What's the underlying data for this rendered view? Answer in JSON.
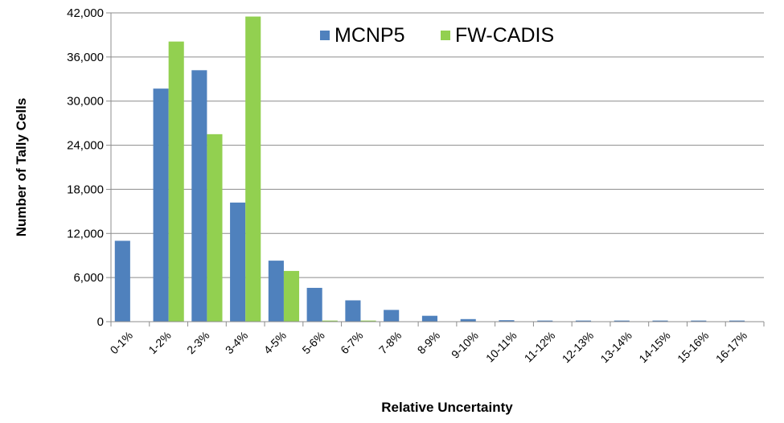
{
  "chart_data": {
    "type": "bar",
    "title": "",
    "xlabel": "Relative Uncertainty",
    "ylabel": "Number of Tally Cells",
    "ylim": [
      0,
      42000
    ],
    "yticks": [
      "0",
      "6,000",
      "12,000",
      "18,000",
      "24,000",
      "30,000",
      "36,000",
      "42,000"
    ],
    "ytick_values": [
      0,
      6000,
      12000,
      18000,
      24000,
      30000,
      36000,
      42000
    ],
    "grid": true,
    "legend_position": "top-center",
    "categories": [
      "0-1%",
      "1-2%",
      "2-3%",
      "3-4%",
      "4-5%",
      "5-6%",
      "6-7%",
      "7-8%",
      "8-9%",
      "9-10%",
      "10-11%",
      "11-12%",
      "12-13%",
      "13-14%",
      "14-15%",
      "15-16%",
      "16-17%"
    ],
    "series": [
      {
        "name": "MCNP5",
        "color": "#4F81BD",
        "values": [
          11000,
          31700,
          34200,
          16200,
          8300,
          4600,
          2900,
          1600,
          800,
          350,
          200,
          150,
          150,
          150,
          150,
          150,
          150
        ]
      },
      {
        "name": "FW-CADIS",
        "color": "#92D050",
        "values": [
          0,
          38100,
          25500,
          41500,
          6900,
          150,
          150,
          0,
          0,
          0,
          0,
          0,
          0,
          0,
          0,
          0,
          0
        ]
      }
    ]
  }
}
